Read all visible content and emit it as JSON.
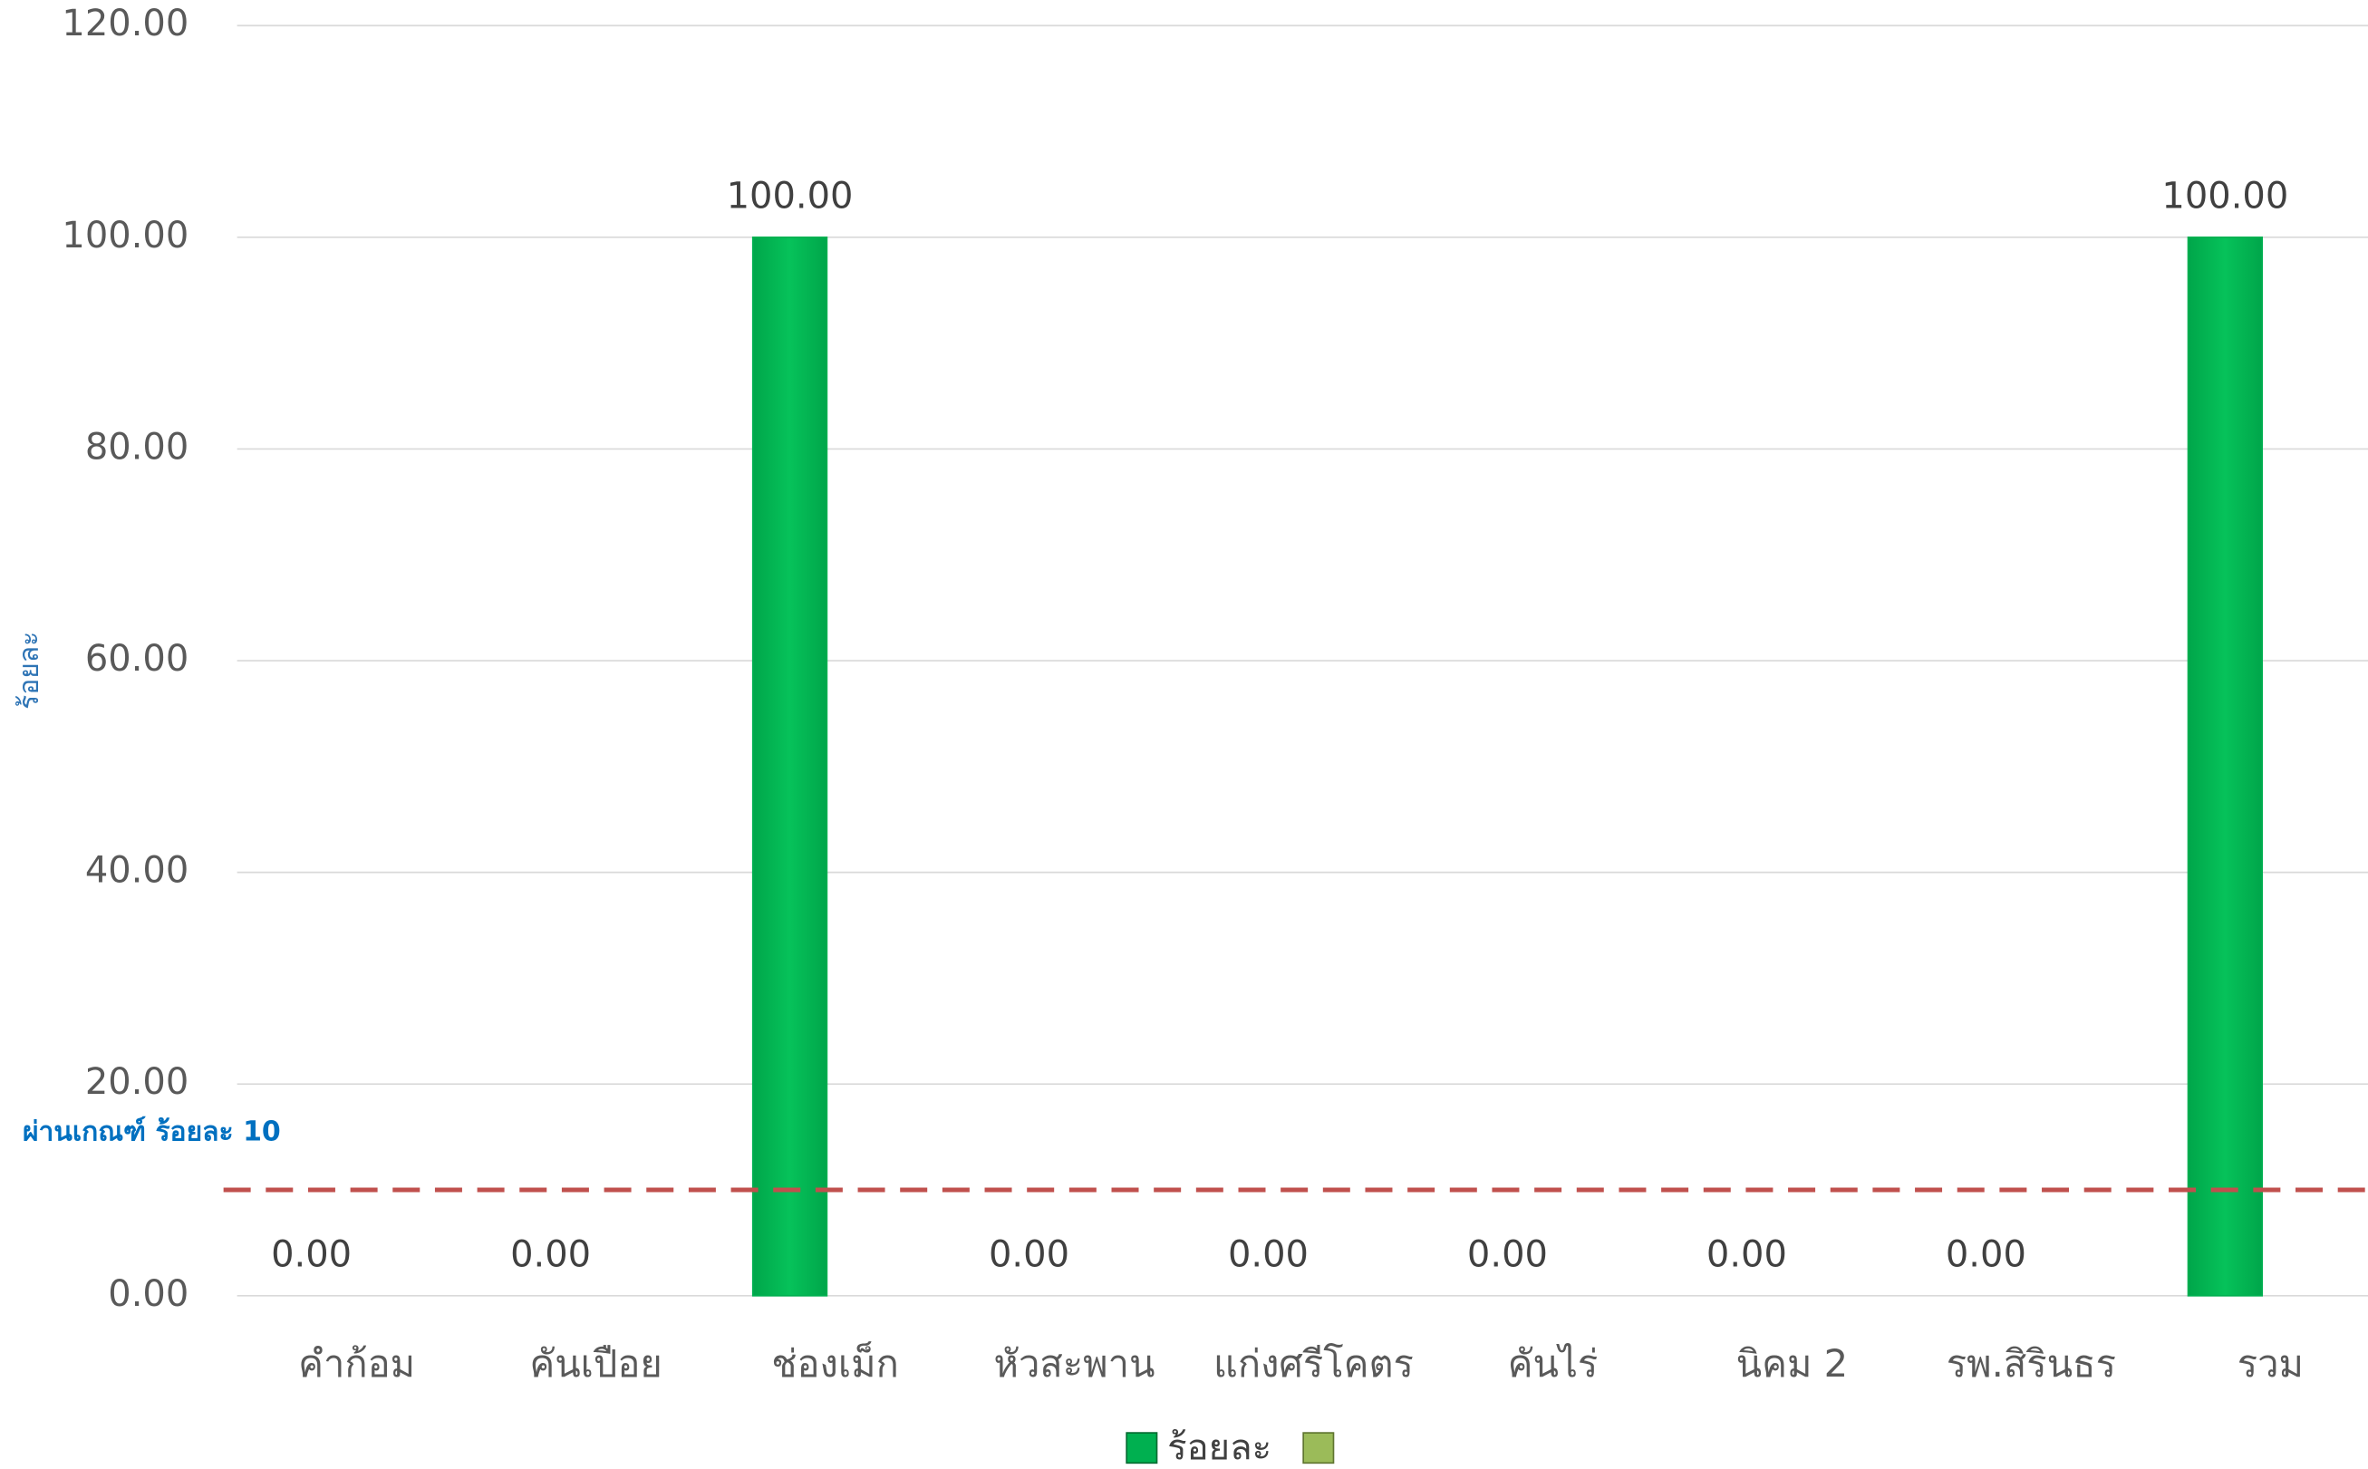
{
  "chart_data": {
    "type": "bar",
    "categories": [
      "คำก้อม",
      "คันเปือย",
      "ช่องเม็ก",
      "หัวสะพาน",
      "แก่งศรีโคตร",
      "คันไร่",
      "นิคม 2",
      "รพ.สิรินธร",
      "รวม"
    ],
    "series": [
      {
        "name": "ร้อยละ",
        "color": "#00b050",
        "values": [
          0,
          0,
          100,
          0,
          0,
          0,
          0,
          0,
          100
        ],
        "value_labels": [
          "0.00",
          "0.00",
          "100.00",
          "0.00",
          "0.00",
          "0.00",
          "0.00",
          "0.00",
          "100.00"
        ]
      }
    ],
    "ylabel": "ร้อยละ",
    "ylim": [
      0,
      120
    ],
    "yticks": [
      {
        "value": 0,
        "label": "0.00"
      },
      {
        "value": 20,
        "label": "20.00"
      },
      {
        "value": 40,
        "label": "40.00"
      },
      {
        "value": 60,
        "label": "60.00"
      },
      {
        "value": 80,
        "label": "80.00"
      },
      {
        "value": 100,
        "label": "100.00"
      },
      {
        "value": 120,
        "label": "120.00"
      }
    ],
    "grid": true,
    "threshold": {
      "value": 10,
      "label": "ผ่านเกณฑ์ ร้อยละ 10",
      "color": "#c0504d"
    },
    "legend": "bottom"
  }
}
